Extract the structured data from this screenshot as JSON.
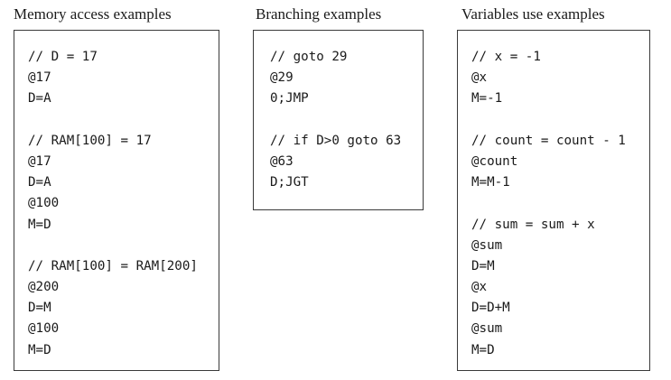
{
  "panels": [
    {
      "title": "Memory access examples",
      "lines": [
        "// D = 17",
        "@17",
        "D=A",
        "",
        "// RAM[100] = 17",
        "@17",
        "D=A",
        "@100",
        "M=D",
        "",
        "// RAM[100] = RAM[200]",
        "@200",
        "D=M",
        "@100",
        "M=D"
      ]
    },
    {
      "title": "Branching examples",
      "lines": [
        "// goto 29",
        "@29",
        "0;JMP",
        "",
        "// if D>0 goto 63",
        "@63",
        "D;JGT"
      ]
    },
    {
      "title": "Variables use examples",
      "lines": [
        "// x = -1",
        "@x",
        "M=-1",
        "",
        "// count = count - 1",
        "@count",
        "M=M-1",
        "",
        "// sum = sum + x",
        "@sum",
        "D=M",
        "@x",
        "D=D+M",
        "@sum",
        "M=D"
      ]
    }
  ]
}
